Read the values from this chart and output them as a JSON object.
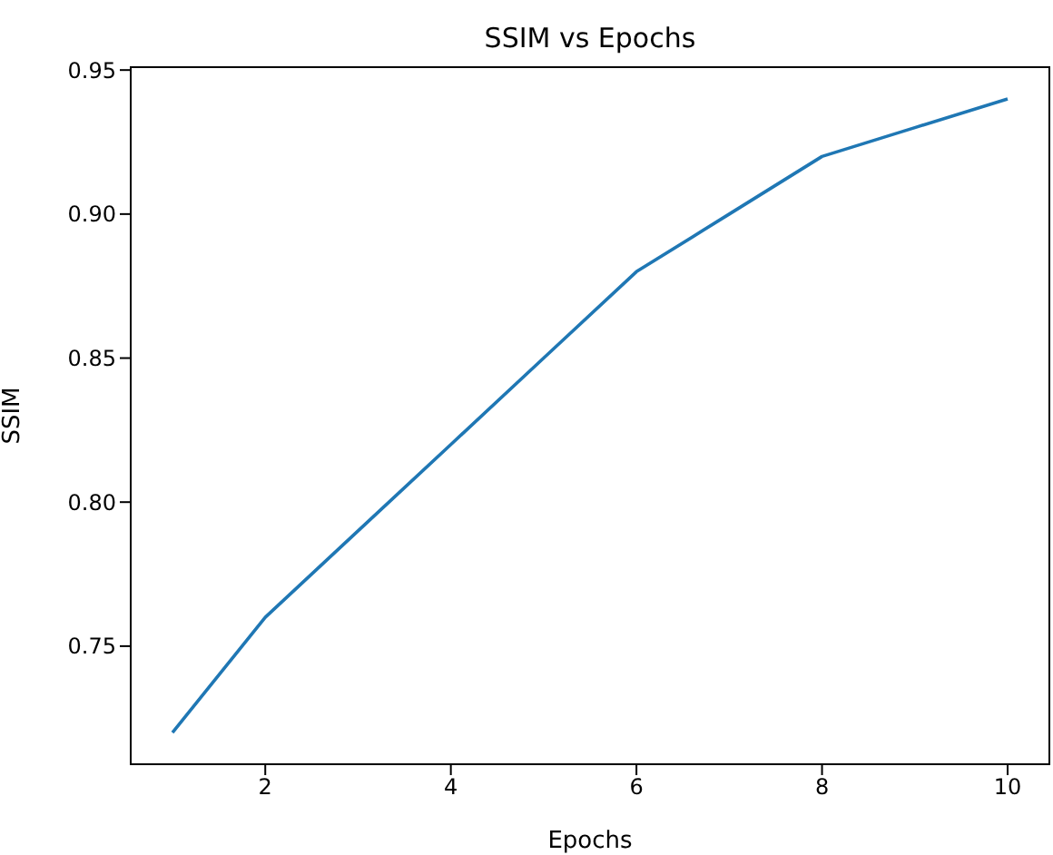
{
  "chart_data": {
    "type": "line",
    "title": "SSIM vs Epochs",
    "xlabel": "Epochs",
    "ylabel": "SSIM",
    "x": [
      1,
      2,
      3,
      4,
      5,
      6,
      7,
      8,
      9,
      10
    ],
    "series": [
      {
        "color": "#1f77b4",
        "values": [
          0.72,
          0.76,
          0.79,
          0.82,
          0.85,
          0.88,
          0.9,
          0.92,
          0.93,
          0.94
        ]
      }
    ],
    "xlim": [
      0.55,
      10.45
    ],
    "xticks": [
      2,
      4,
      6,
      8,
      10
    ],
    "ylim": [
      0.709,
      0.951
    ],
    "yticks": [
      0.75,
      {
        "value": 0.8,
        "label": "0.80"
      },
      0.85,
      {
        "value": 0.9,
        "label": "0.90"
      },
      0.95
    ],
    "grid": false,
    "legend": false,
    "marker": "none",
    "line_style": "solid"
  }
}
